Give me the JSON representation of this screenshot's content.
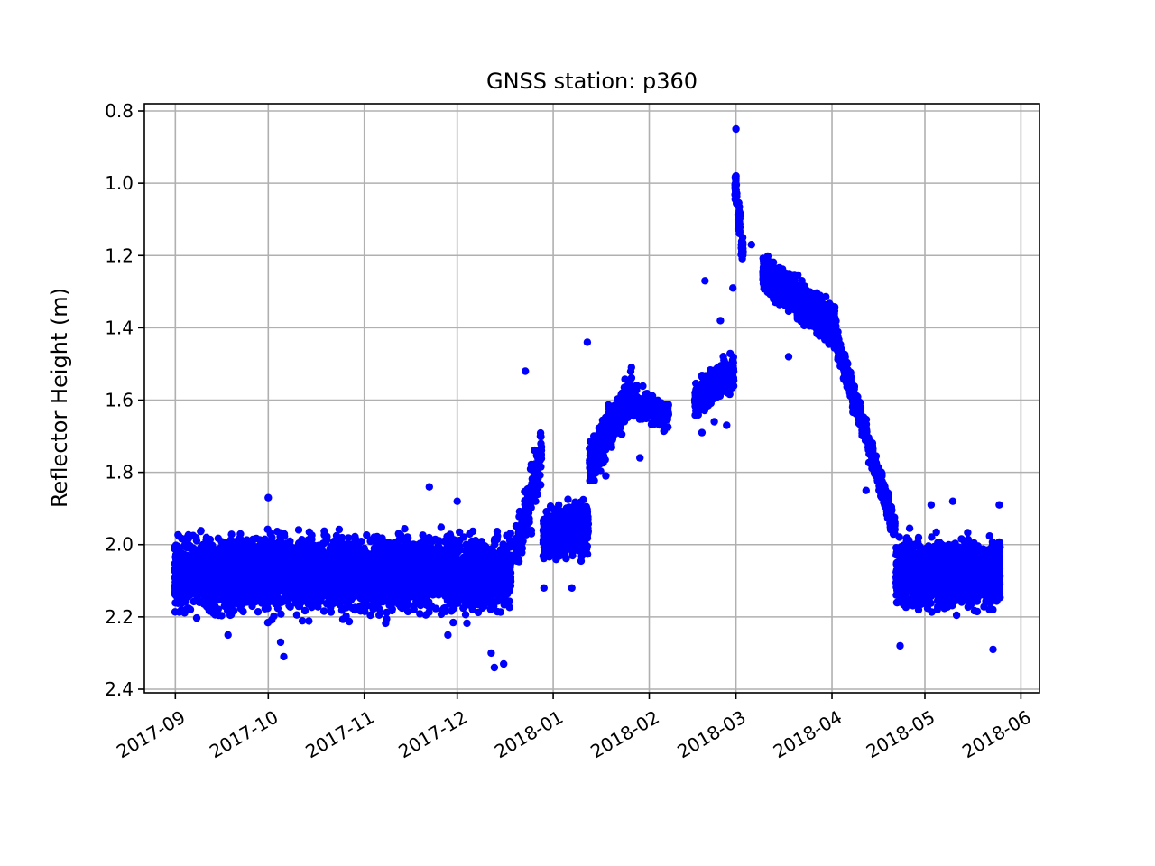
{
  "chart_data": {
    "type": "scatter",
    "title": "GNSS station: p360",
    "xlabel": "",
    "ylabel": "Reflector Height (m)",
    "x_axis_type": "date",
    "xlim": [
      "2017-08-22",
      "2018-06-07"
    ],
    "ylim": [
      2.41,
      0.78
    ],
    "y_inverted": true,
    "grid": true,
    "x_ticks": [
      "2017-09",
      "2017-10",
      "2017-11",
      "2017-12",
      "2018-01",
      "2018-02",
      "2018-03",
      "2018-04",
      "2018-05",
      "2018-06"
    ],
    "x_tick_dates": [
      "2017-09-01",
      "2017-10-01",
      "2017-11-01",
      "2017-12-01",
      "2018-01-01",
      "2018-02-01",
      "2018-03-01",
      "2018-04-01",
      "2018-05-01",
      "2018-06-01"
    ],
    "y_ticks": [
      0.8,
      1.0,
      1.2,
      1.4,
      1.6,
      1.8,
      2.0,
      2.2,
      2.4
    ],
    "y_tick_labels": [
      "0.8",
      "1.0",
      "1.2",
      "1.4",
      "1.6",
      "1.8",
      "2.0",
      "2.2",
      "2.4"
    ],
    "marker_color": "#0000ff",
    "series": [
      {
        "clusters": [
          {
            "from": "2017-09-01",
            "to": "2017-12-18",
            "y_from": 2.08,
            "y_to": 2.08,
            "spread": 0.11,
            "density": 38
          },
          {
            "from": "2017-12-20",
            "to": "2017-12-24",
            "y_from": 2.0,
            "y_to": 1.9,
            "spread": 0.07,
            "density": 20
          },
          {
            "from": "2017-12-25",
            "to": "2017-12-28",
            "y_from": 1.85,
            "y_to": 1.75,
            "spread": 0.1,
            "density": 16
          },
          {
            "from": "2017-12-29",
            "to": "2018-01-12",
            "y_from": 1.98,
            "y_to": 1.95,
            "spread": 0.08,
            "density": 30
          },
          {
            "from": "2018-01-13",
            "to": "2018-01-26",
            "y_from": 1.78,
            "y_to": 1.58,
            "spread": 0.07,
            "density": 28
          },
          {
            "from": "2018-01-27",
            "to": "2018-02-07",
            "y_from": 1.6,
            "y_to": 1.65,
            "spread": 0.05,
            "density": 14
          },
          {
            "from": "2018-02-16",
            "to": "2018-02-28",
            "y_from": 1.6,
            "y_to": 1.52,
            "spread": 0.05,
            "density": 32
          },
          {
            "from": "2018-03-01",
            "to": "2018-03-03",
            "y_from": 1.02,
            "y_to": 1.18,
            "spread": 0.05,
            "density": 30
          },
          {
            "from": "2018-03-10",
            "to": "2018-04-02",
            "y_from": 1.25,
            "y_to": 1.4,
            "spread": 0.06,
            "density": 40
          },
          {
            "from": "2018-04-03",
            "to": "2018-04-21",
            "y_from": 1.45,
            "y_to": 1.95,
            "spread": 0.04,
            "density": 34
          },
          {
            "from": "2018-04-22",
            "to": "2018-05-25",
            "y_from": 2.08,
            "y_to": 2.08,
            "spread": 0.1,
            "density": 38
          }
        ],
        "points": [
          {
            "x": "2018-03-01",
            "y": 0.85
          },
          {
            "x": "2018-03-01",
            "y": 0.98
          },
          {
            "x": "2018-01-12",
            "y": 1.44
          },
          {
            "x": "2017-12-23",
            "y": 1.52
          },
          {
            "x": "2018-02-19",
            "y": 1.27
          },
          {
            "x": "2018-02-28",
            "y": 1.29
          },
          {
            "x": "2018-02-24",
            "y": 1.38
          },
          {
            "x": "2018-02-22",
            "y": 1.66
          },
          {
            "x": "2018-02-26",
            "y": 1.67
          },
          {
            "x": "2018-02-18",
            "y": 1.69
          },
          {
            "x": "2018-03-06",
            "y": 1.17
          },
          {
            "x": "2017-10-06",
            "y": 2.31
          },
          {
            "x": "2017-10-05",
            "y": 2.27
          },
          {
            "x": "2017-09-18",
            "y": 2.25
          },
          {
            "x": "2017-12-12",
            "y": 2.3
          },
          {
            "x": "2017-12-13",
            "y": 2.34
          },
          {
            "x": "2017-12-16",
            "y": 2.33
          },
          {
            "x": "2017-12-01",
            "y": 1.88
          },
          {
            "x": "2017-11-28",
            "y": 2.25
          },
          {
            "x": "2018-01-18",
            "y": 1.81
          },
          {
            "x": "2018-01-29",
            "y": 1.76
          },
          {
            "x": "2018-01-07",
            "y": 2.12
          },
          {
            "x": "2017-12-29",
            "y": 2.12
          },
          {
            "x": "2018-04-23",
            "y": 2.28
          },
          {
            "x": "2018-05-23",
            "y": 2.29
          },
          {
            "x": "2018-05-03",
            "y": 1.89
          },
          {
            "x": "2018-05-25",
            "y": 1.89
          },
          {
            "x": "2018-05-10",
            "y": 1.88
          },
          {
            "x": "2017-10-01",
            "y": 1.87
          },
          {
            "x": "2017-11-22",
            "y": 1.84
          },
          {
            "x": "2018-03-18",
            "y": 1.48
          },
          {
            "x": "2018-04-12",
            "y": 1.85
          }
        ]
      }
    ]
  }
}
